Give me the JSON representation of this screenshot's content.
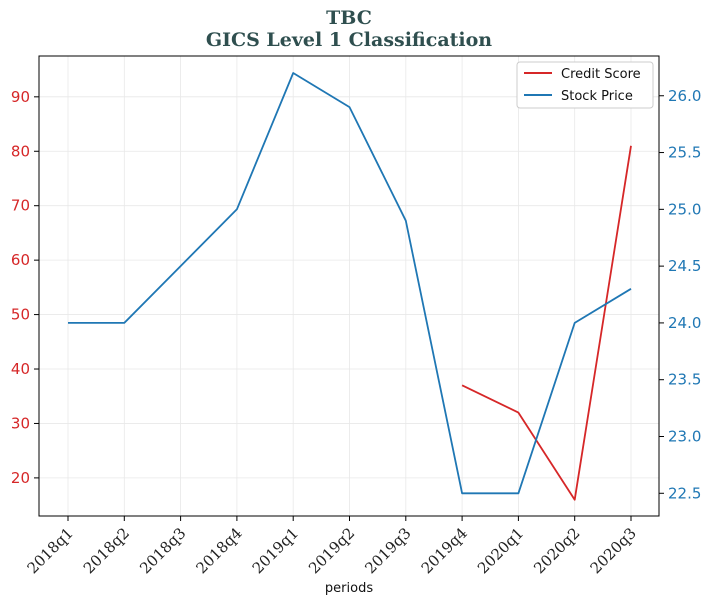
{
  "chart_data": {
    "type": "line",
    "title": "TBC",
    "subtitle": "GICS Level 1 Classification",
    "xlabel": "periods",
    "categories": [
      "2018q1",
      "2018q2",
      "2018q3",
      "2018q4",
      "2019q1",
      "2019q2",
      "2019q3",
      "2019q4",
      "2020q1",
      "2020q2",
      "2020q3"
    ],
    "y_left": {
      "ylim": [
        13,
        97.5
      ],
      "ticks": [
        20,
        30,
        40,
        50,
        60,
        70,
        80,
        90
      ],
      "color": "#d62728"
    },
    "y_right": {
      "ylim": [
        22.3,
        26.35
      ],
      "ticks": [
        "22.5",
        "23.0",
        "23.5",
        "24.0",
        "24.5",
        "25.0",
        "25.5",
        "26.0"
      ],
      "color": "#1f77b4"
    },
    "series": [
      {
        "name": "Credit Score",
        "axis": "left",
        "color": "#d62728",
        "values": [
          null,
          null,
          null,
          null,
          null,
          null,
          null,
          37,
          32,
          16,
          81
        ]
      },
      {
        "name": "Stock Price",
        "axis": "right",
        "color": "#1f77b4",
        "values": [
          24.0,
          24.0,
          24.5,
          25.0,
          26.2,
          25.9,
          24.9,
          22.5,
          22.5,
          24.0,
          24.3
        ]
      }
    ],
    "grid": true,
    "legend_position": "top-right"
  }
}
